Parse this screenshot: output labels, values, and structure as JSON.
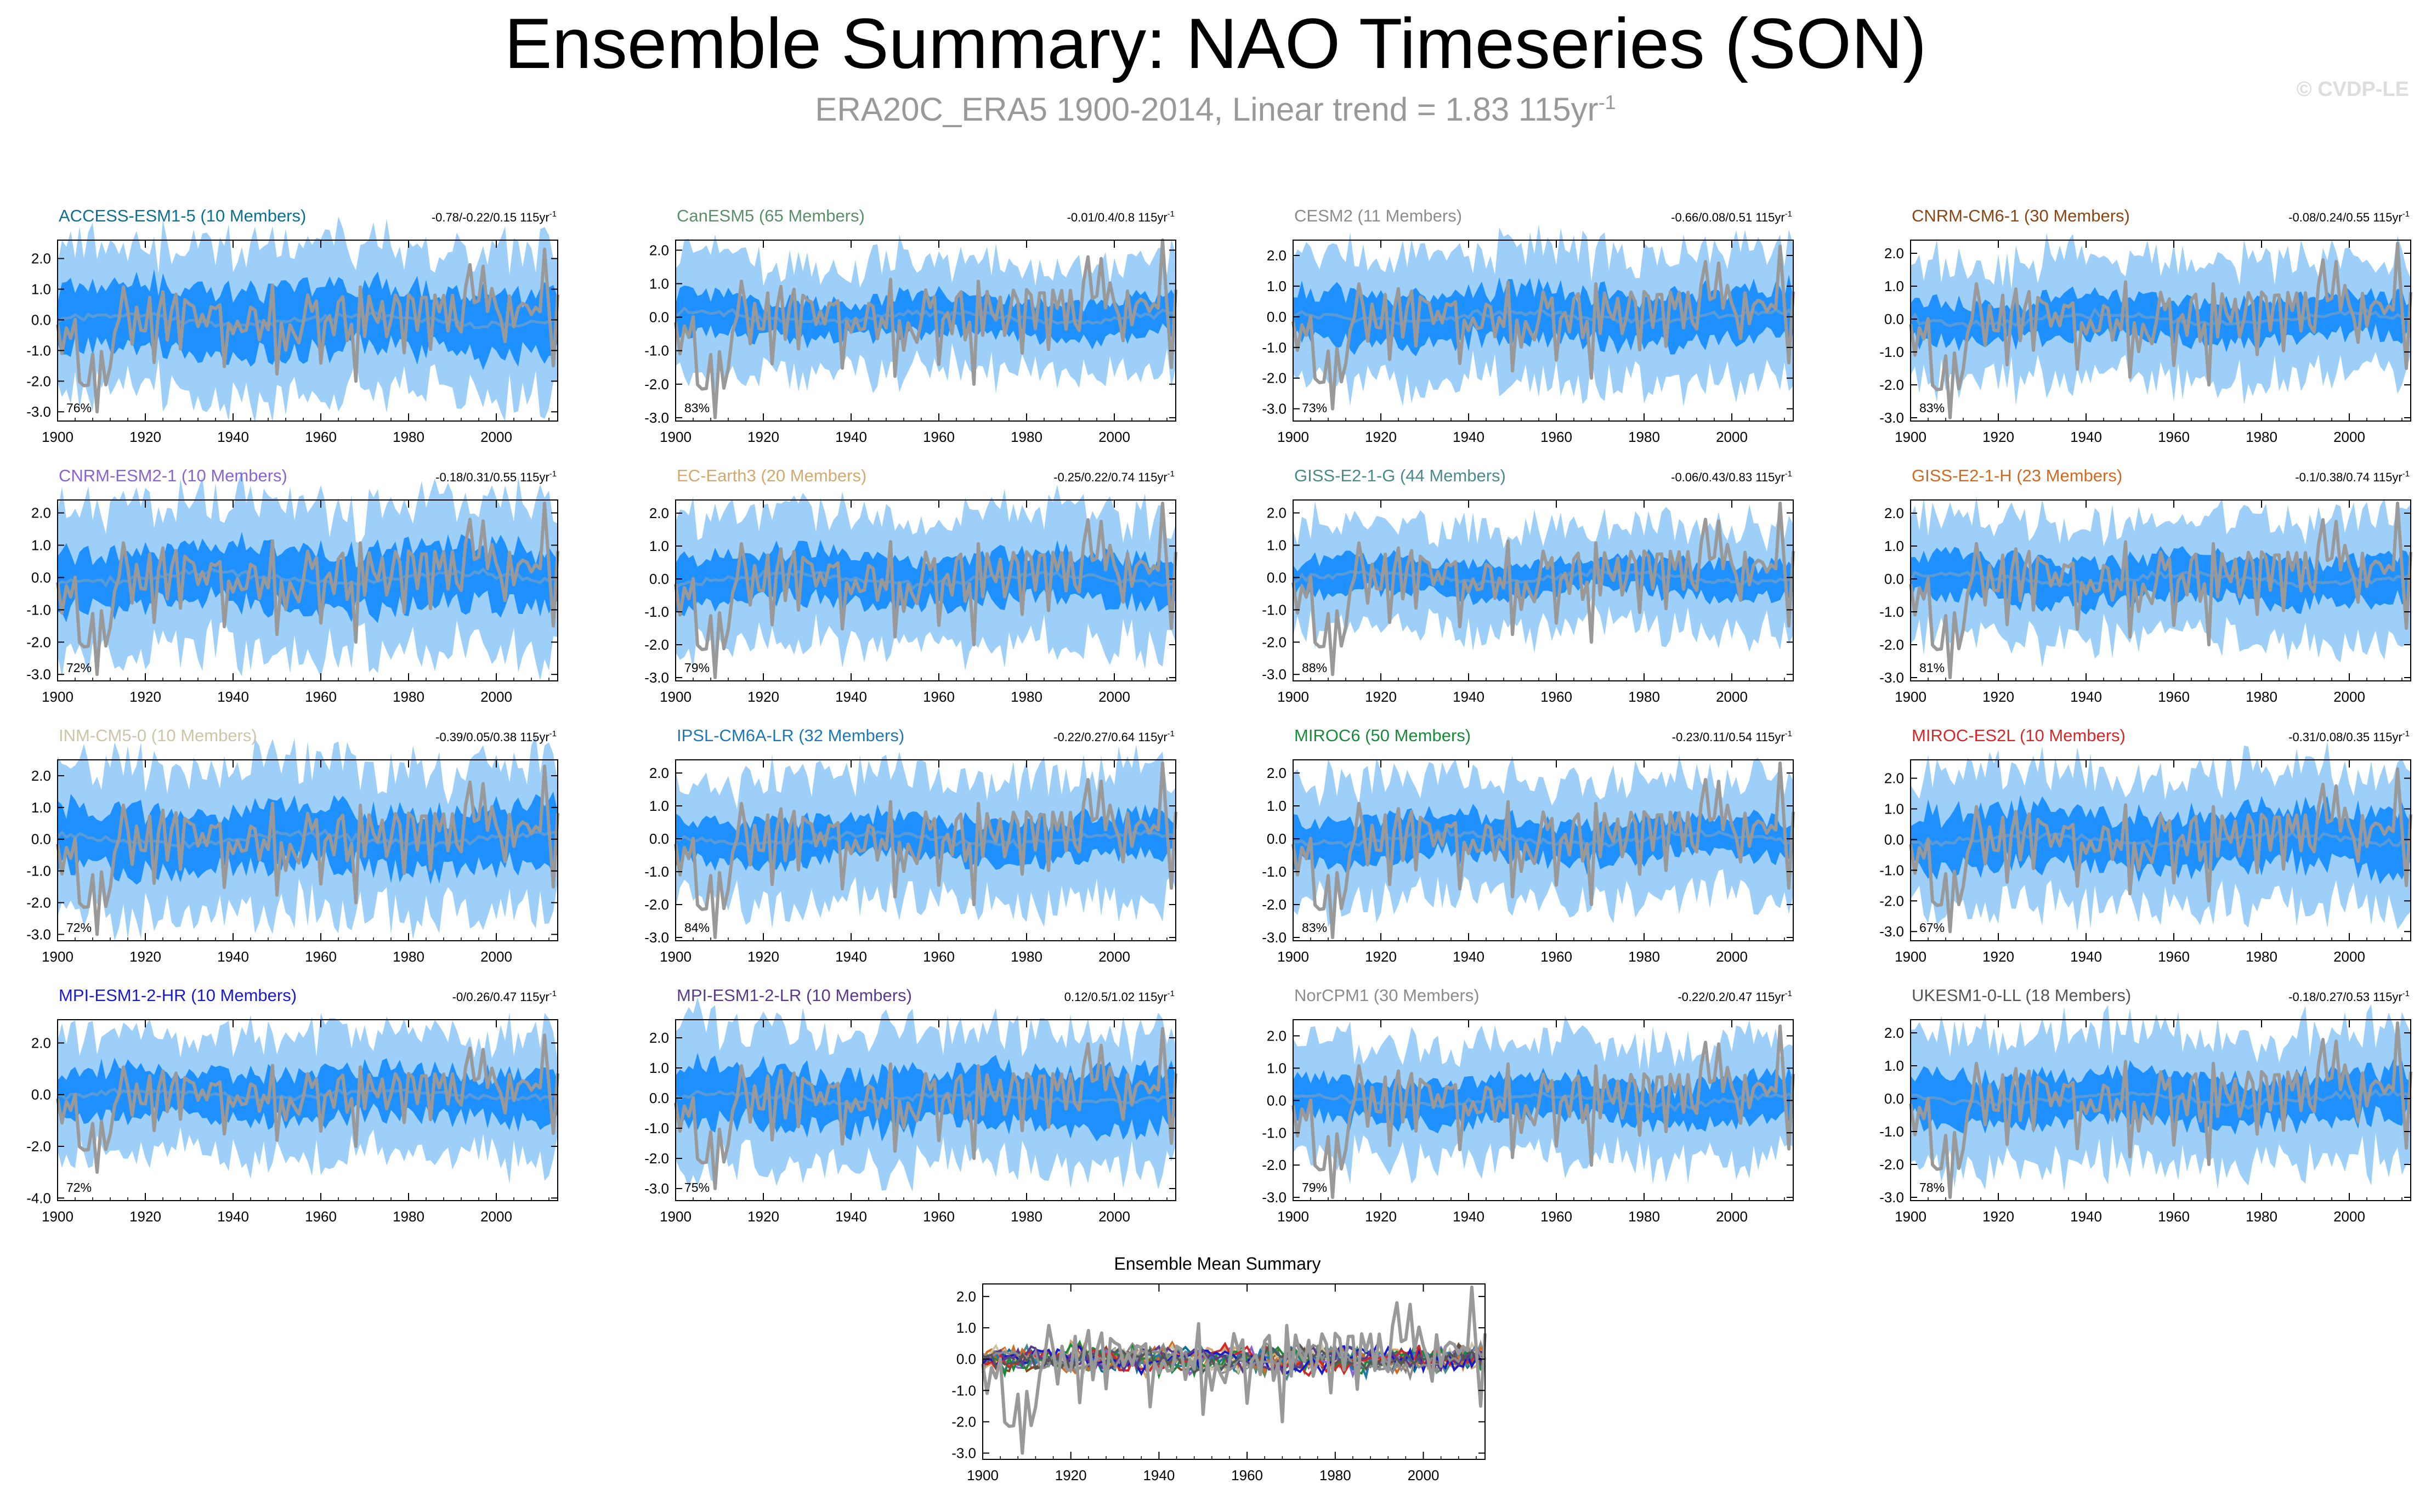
{
  "title": "Ensemble Summary: NAO Timeseries (SON)",
  "subtitle": "ERA20C_ERA5 1900-2014, Linear trend = 1.83 115yr",
  "subtitle_sup": "-1",
  "credit": "© CVDP-LE",
  "colors": {
    "obs": "#999999",
    "mean": "#5b9bd5",
    "band_inner": "#1e90ff",
    "band_outer": "#9ecff8"
  },
  "chart_data": [
    {
      "type": "line",
      "model": "ACCESS-ESM1-5 (10 Members)",
      "title_color": "#0a6f91",
      "stats": "-0.78/-0.22/0.15 115yr",
      "stats_sup": "-1",
      "percent": "76%",
      "yticks": [
        "2.0",
        "1.0",
        "0.0",
        "-1.0",
        "-2.0",
        "-3.0"
      ],
      "ylim": [
        -3.3,
        2.6
      ],
      "xticks": [
        "1900",
        "1920",
        "1940",
        "1960",
        "1980",
        "2000"
      ],
      "xlim": [
        1900,
        2014
      ],
      "inner_amp": 1.0,
      "outer_amp": 1.6
    },
    {
      "type": "line",
      "model": "CanESM5 (65 Members)",
      "title_color": "#5b8f6a",
      "stats": "-0.01/0.4/0.8 115yr",
      "stats_sup": "-1",
      "percent": "83%",
      "yticks": [
        "2.0",
        "1.0",
        "0.0",
        "-1.0",
        "-2.0",
        "-3.0"
      ],
      "ylim": [
        -3.1,
        2.3
      ],
      "xticks": [
        "1900",
        "1920",
        "1940",
        "1960",
        "1980",
        "2000"
      ],
      "xlim": [
        1900,
        2014
      ],
      "inner_amp": 0.55,
      "outer_amp": 1.3
    },
    {
      "type": "line",
      "model": "CESM2 (11 Members)",
      "title_color": "#8c8c8c",
      "stats": "-0.66/0.08/0.51 115yr",
      "stats_sup": "-1",
      "percent": "73%",
      "yticks": [
        "2.0",
        "1.0",
        "0.0",
        "-1.0",
        "-2.0",
        "-3.0"
      ],
      "ylim": [
        -3.4,
        2.5
      ],
      "xticks": [
        "1900",
        "1920",
        "1940",
        "1960",
        "1980",
        "2000"
      ],
      "xlim": [
        1900,
        2014
      ],
      "inner_amp": 0.8,
      "outer_amp": 1.5
    },
    {
      "type": "line",
      "model": "CNRM-CM6-1 (30 Members)",
      "title_color": "#8b4513",
      "stats": "-0.08/0.24/0.55 115yr",
      "stats_sup": "-1",
      "percent": "83%",
      "yticks": [
        "2.0",
        "1.0",
        "0.0",
        "-1.0",
        "-2.0",
        "-3.0"
      ],
      "ylim": [
        -3.1,
        2.4
      ],
      "xticks": [
        "1900",
        "1920",
        "1940",
        "1960",
        "1980",
        "2000"
      ],
      "xlim": [
        1900,
        2014
      ],
      "inner_amp": 0.6,
      "outer_amp": 1.4
    },
    {
      "type": "line",
      "model": "CNRM-ESM2-1 (10 Members)",
      "title_color": "#8a63d2",
      "stats": "-0.18/0.31/0.55 115yr",
      "stats_sup": "-1",
      "percent": "72%",
      "yticks": [
        "2.0",
        "1.0",
        "0.0",
        "-1.0",
        "-2.0",
        "-3.0"
      ],
      "ylim": [
        -3.2,
        2.4
      ],
      "xticks": [
        "1900",
        "1920",
        "1940",
        "1960",
        "1980",
        "2000"
      ],
      "xlim": [
        1900,
        2014
      ],
      "inner_amp": 0.9,
      "outer_amp": 1.6
    },
    {
      "type": "line",
      "model": "EC-Earth3 (20 Members)",
      "title_color": "#d2a96e",
      "stats": "-0.25/0.22/0.74 115yr",
      "stats_sup": "-1",
      "percent": "79%",
      "yticks": [
        "2.0",
        "1.0",
        "0.0",
        "-1.0",
        "-2.0",
        "-3.0"
      ],
      "ylim": [
        -3.1,
        2.4
      ],
      "xticks": [
        "1900",
        "1920",
        "1940",
        "1960",
        "1980",
        "2000"
      ],
      "xlim": [
        1900,
        2014
      ],
      "inner_amp": 0.7,
      "outer_amp": 1.5
    },
    {
      "type": "line",
      "model": "GISS-E2-1-G (44 Members)",
      "title_color": "#4a8a8a",
      "stats": "-0.06/0.43/0.83 115yr",
      "stats_sup": "-1",
      "percent": "88%",
      "yticks": [
        "2.0",
        "1.0",
        "0.0",
        "-1.0",
        "-2.0",
        "-3.0"
      ],
      "ylim": [
        -3.2,
        2.4
      ],
      "xticks": [
        "1900",
        "1920",
        "1940",
        "1960",
        "1980",
        "2000"
      ],
      "xlim": [
        1900,
        2014
      ],
      "inner_amp": 0.5,
      "outer_amp": 1.3
    },
    {
      "type": "line",
      "model": "GISS-E2-1-H (23 Members)",
      "title_color": "#d2691e",
      "stats": "-0.1/0.38/0.74 115yr",
      "stats_sup": "-1",
      "percent": "81%",
      "yticks": [
        "2.0",
        "1.0",
        "0.0",
        "-1.0",
        "-2.0",
        "-3.0"
      ],
      "ylim": [
        -3.1,
        2.4
      ],
      "xticks": [
        "1900",
        "1920",
        "1940",
        "1960",
        "1980",
        "2000"
      ],
      "xlim": [
        1900,
        2014
      ],
      "inner_amp": 0.6,
      "outer_amp": 1.4
    },
    {
      "type": "line",
      "model": "INM-CM5-0 (10 Members)",
      "title_color": "#cdc5a8",
      "stats": "-0.39/0.05/0.38 115yr",
      "stats_sup": "-1",
      "percent": "72%",
      "yticks": [
        "2.0",
        "1.0",
        "0.0",
        "-1.0",
        "-2.0",
        "-3.0"
      ],
      "ylim": [
        -3.2,
        2.5
      ],
      "xticks": [
        "1900",
        "1920",
        "1940",
        "1960",
        "1980",
        "2000"
      ],
      "xlim": [
        1900,
        2014
      ],
      "inner_amp": 0.9,
      "outer_amp": 1.6
    },
    {
      "type": "line",
      "model": "IPSL-CM6A-LR (32 Members)",
      "title_color": "#1f77b4",
      "stats": "-0.22/0.27/0.64 115yr",
      "stats_sup": "-1",
      "percent": "84%",
      "yticks": [
        "2.0",
        "1.0",
        "0.0",
        "-1.0",
        "-2.0",
        "-3.0"
      ],
      "ylim": [
        -3.1,
        2.4
      ],
      "xticks": [
        "1900",
        "1920",
        "1940",
        "1960",
        "1980",
        "2000"
      ],
      "xlim": [
        1900,
        2014
      ],
      "inner_amp": 0.6,
      "outer_amp": 1.5
    },
    {
      "type": "line",
      "model": "MIROC6 (50 Members)",
      "title_color": "#1a8a3a",
      "stats": "-0.23/0.11/0.54 115yr",
      "stats_sup": "-1",
      "percent": "83%",
      "yticks": [
        "2.0",
        "1.0",
        "0.0",
        "-1.0",
        "-2.0",
        "-3.0"
      ],
      "ylim": [
        -3.1,
        2.4
      ],
      "xticks": [
        "1900",
        "1920",
        "1940",
        "1960",
        "1980",
        "2000"
      ],
      "xlim": [
        1900,
        2014
      ],
      "inner_amp": 0.6,
      "outer_amp": 1.4
    },
    {
      "type": "line",
      "model": "MIROC-ES2L (10 Members)",
      "title_color": "#d62728",
      "stats": "-0.31/0.08/0.35 115yr",
      "stats_sup": "-1",
      "percent": "67%",
      "yticks": [
        "2.0",
        "1.0",
        "0.0",
        "-1.0",
        "-2.0",
        "-3.0"
      ],
      "ylim": [
        -3.3,
        2.6
      ],
      "xticks": [
        "1900",
        "1920",
        "1940",
        "1960",
        "1980",
        "2000"
      ],
      "xlim": [
        1900,
        2014
      ],
      "inner_amp": 0.9,
      "outer_amp": 1.5
    },
    {
      "type": "line",
      "model": "MPI-ESM1-2-HR (10 Members)",
      "title_color": "#1a1acd",
      "stats": "-0/0.26/0.47 115yr",
      "stats_sup": "-1",
      "percent": "72%",
      "yticks": [
        "2.0",
        "0.0",
        "-2.0",
        "-4.0"
      ],
      "ylim": [
        -4.1,
        2.9
      ],
      "xticks": [
        "1900",
        "1920",
        "1940",
        "1960",
        "1980",
        "2000"
      ],
      "xlim": [
        1900,
        2014
      ],
      "inner_amp": 0.9,
      "outer_amp": 1.7
    },
    {
      "type": "line",
      "model": "MPI-ESM1-2-LR (10 Members)",
      "title_color": "#5a3a8a",
      "stats": "0.12/0.5/1.02 115yr",
      "stats_sup": "-1",
      "percent": "75%",
      "yticks": [
        "2.0",
        "1.0",
        "0.0",
        "-1.0",
        "-2.0",
        "-3.0"
      ],
      "ylim": [
        -3.4,
        2.6
      ],
      "xticks": [
        "1900",
        "1920",
        "1940",
        "1960",
        "1980",
        "2000"
      ],
      "xlim": [
        1900,
        2014
      ],
      "inner_amp": 0.9,
      "outer_amp": 1.6
    },
    {
      "type": "line",
      "model": "NorCPM1 (30 Members)",
      "title_color": "#8c8c8c",
      "stats": "-0.22/0.2/0.47 115yr",
      "stats_sup": "-1",
      "percent": "79%",
      "yticks": [
        "2.0",
        "1.0",
        "0.0",
        "-1.0",
        "-2.0",
        "-3.0"
      ],
      "ylim": [
        -3.1,
        2.5
      ],
      "xticks": [
        "1900",
        "1920",
        "1940",
        "1960",
        "1980",
        "2000"
      ],
      "xlim": [
        1900,
        2014
      ],
      "inner_amp": 0.6,
      "outer_amp": 1.4
    },
    {
      "type": "line",
      "model": "UKESM1-0-LL (18 Members)",
      "title_color": "#555555",
      "stats": "-0.18/0.27/0.53 115yr",
      "stats_sup": "-1",
      "percent": "78%",
      "yticks": [
        "2.0",
        "1.0",
        "0.0",
        "-1.0",
        "-2.0",
        "-3.0"
      ],
      "ylim": [
        -3.1,
        2.4
      ],
      "xticks": [
        "1900",
        "1920",
        "1940",
        "1960",
        "1980",
        "2000"
      ],
      "xlim": [
        1900,
        2014
      ],
      "inner_amp": 0.7,
      "outer_amp": 1.5
    },
    {
      "type": "line",
      "model": "Ensemble Mean Summary",
      "summary": true,
      "yticks": [
        "2.0",
        "1.0",
        "0.0",
        "-1.0",
        "-2.0",
        "-3.0"
      ],
      "ylim": [
        -3.2,
        2.4
      ],
      "xticks": [
        "1900",
        "1920",
        "1940",
        "1960",
        "1980",
        "2000"
      ],
      "xlim": [
        1900,
        2014
      ],
      "series_colors": [
        "#0a6f91",
        "#5b8f6a",
        "#8c8c8c",
        "#8b4513",
        "#8a63d2",
        "#d2a96e",
        "#4a8a8a",
        "#d2691e",
        "#cdc5a8",
        "#1f77b4",
        "#1a8a3a",
        "#d62728",
        "#1a1acd",
        "#5a3a8a",
        "#8c8c8c",
        "#555555"
      ]
    }
  ]
}
